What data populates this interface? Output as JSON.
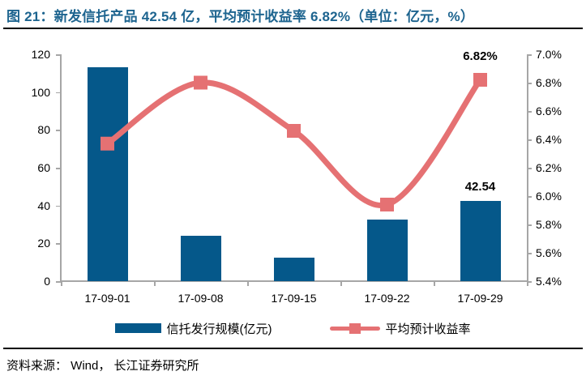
{
  "title": "图  21：新发信托产品 42.54 亿，平均预计收益率 6.82%（单位：亿元，%）",
  "source": "资料来源： Wind， 长江证券研究所",
  "colors": {
    "title": "#1d648f",
    "bar": "#05588a",
    "line": "#e57173",
    "axis": "#a6a6a6",
    "text": "#000000"
  },
  "legend": [
    {
      "label": "信托发行规模(亿元)",
      "type": "bar"
    },
    {
      "label": "平均预计收益率",
      "type": "line"
    }
  ],
  "chart_data": {
    "type": "bar",
    "subtype": "bar+line dual axis",
    "categories": [
      "17-09-01",
      "17-09-08",
      "17-09-15",
      "17-09-22",
      "17-09-29"
    ],
    "series": [
      {
        "name": "信托发行规模(亿元)",
        "type": "bar",
        "axis": "left",
        "values": [
          113.1,
          24.1,
          12.3,
          32.7,
          42.54
        ]
      },
      {
        "name": "平均预计收益率",
        "type": "line",
        "axis": "right",
        "values": [
          6.37,
          6.8,
          6.46,
          5.94,
          6.82
        ]
      }
    ],
    "left_axis": {
      "min": 0,
      "max": 120,
      "step": 20,
      "tick_labels": [
        "120",
        "100",
        "80",
        "60",
        "40",
        "20",
        "0"
      ]
    },
    "right_axis": {
      "min": 5.4,
      "max": 7.0,
      "step": 0.2,
      "tick_labels": [
        "7.0%",
        "6.8%",
        "6.6%",
        "6.4%",
        "6.2%",
        "6.0%",
        "5.8%",
        "5.6%",
        "5.4%"
      ]
    },
    "annotations": [
      {
        "series": "line",
        "index": 4,
        "text": "6.82%"
      },
      {
        "series": "bar",
        "index": 4,
        "text": "42.54"
      }
    ],
    "grid": false,
    "legend_position": "bottom"
  }
}
